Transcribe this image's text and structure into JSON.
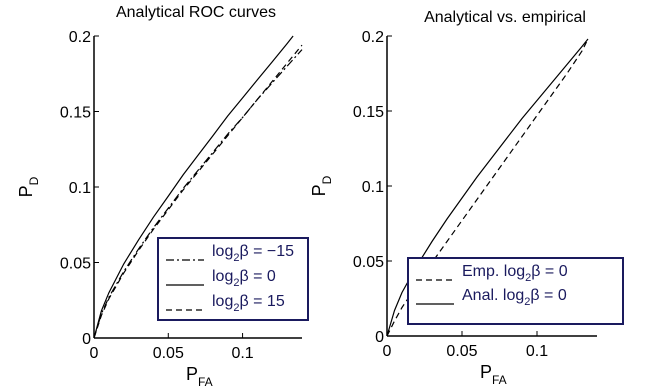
{
  "chart_data": [
    {
      "type": "line",
      "title": "Analytical ROC curves",
      "xlabel": "P",
      "xlabel_sub": "FA",
      "ylabel": "P",
      "ylabel_sub": "D",
      "xlim": [
        0,
        0.14
      ],
      "ylim": [
        0,
        0.2
      ],
      "xticks": [
        0,
        0.05,
        0.1
      ],
      "xtick_labels": [
        "0",
        "0.05",
        "0.1"
      ],
      "yticks": [
        0,
        0.05,
        0.1,
        0.15,
        0.2
      ],
      "ytick_labels": [
        "0",
        "0.05",
        "0.1",
        "0.15",
        "0.2"
      ],
      "grid": false,
      "legend_position": "bottom-right",
      "series": [
        {
          "name": "log",
          "name_sub": "2",
          "name_rest": "β = −15",
          "line_style": "dash-dot",
          "x": [
            0,
            0.005,
            0.01,
            0.02,
            0.03,
            0.04,
            0.05,
            0.06,
            0.07,
            0.08,
            0.09,
            0.1,
            0.11,
            0.12,
            0.13,
            0.14
          ],
          "y": [
            0,
            0.016,
            0.027,
            0.044,
            0.059,
            0.073,
            0.086,
            0.099,
            0.111,
            0.123,
            0.135,
            0.146,
            0.158,
            0.169,
            0.18,
            0.191
          ]
        },
        {
          "name": "log",
          "name_sub": "2",
          "name_rest": "β = 0",
          "line_style": "solid",
          "x": [
            0,
            0.005,
            0.01,
            0.02,
            0.03,
            0.04,
            0.05,
            0.06,
            0.07,
            0.08,
            0.09,
            0.1,
            0.11,
            0.12,
            0.13,
            0.134
          ],
          "y": [
            0,
            0.018,
            0.03,
            0.049,
            0.065,
            0.08,
            0.094,
            0.108,
            0.121,
            0.134,
            0.147,
            0.159,
            0.171,
            0.183,
            0.195,
            0.2
          ]
        },
        {
          "name": "log",
          "name_sub": "2",
          "name_rest": "β = 15",
          "line_style": "dashed",
          "x": [
            0,
            0.005,
            0.01,
            0.02,
            0.03,
            0.04,
            0.05,
            0.06,
            0.07,
            0.08,
            0.09,
            0.1,
            0.11,
            0.12,
            0.13,
            0.14
          ],
          "y": [
            0,
            0.015,
            0.026,
            0.043,
            0.058,
            0.072,
            0.085,
            0.098,
            0.11,
            0.122,
            0.134,
            0.146,
            0.158,
            0.17,
            0.182,
            0.194
          ]
        }
      ]
    },
    {
      "type": "line",
      "title": "Analytical vs. empirical",
      "xlabel": "P",
      "xlabel_sub": "FA",
      "ylabel": "P",
      "ylabel_sub": "D",
      "xlim": [
        0,
        0.14
      ],
      "ylim": [
        0,
        0.2
      ],
      "xticks": [
        0,
        0.05,
        0.1
      ],
      "xtick_labels": [
        "0",
        "0.05",
        "0.1"
      ],
      "yticks": [
        0,
        0.05,
        0.1,
        0.15,
        0.2
      ],
      "ytick_labels": [
        "0",
        "0.05",
        "0.1",
        "0.15",
        "0.2"
      ],
      "grid": false,
      "legend_position": "bottom-right",
      "series": [
        {
          "name": "Emp. log",
          "name_sub": "2",
          "name_rest": "β = 0",
          "line_style": "dashed",
          "x": [
            0,
            0.005,
            0.01,
            0.02,
            0.03,
            0.04,
            0.05,
            0.06,
            0.07,
            0.08,
            0.09,
            0.1,
            0.11,
            0.12,
            0.13,
            0.133
          ],
          "y": [
            0,
            0.01,
            0.019,
            0.034,
            0.049,
            0.063,
            0.077,
            0.091,
            0.105,
            0.119,
            0.133,
            0.147,
            0.161,
            0.175,
            0.19,
            0.196
          ]
        },
        {
          "name": "Anal. log",
          "name_sub": "2",
          "name_rest": "β = 0",
          "line_style": "solid",
          "x": [
            0,
            0.005,
            0.01,
            0.02,
            0.03,
            0.04,
            0.05,
            0.06,
            0.07,
            0.08,
            0.09,
            0.1,
            0.11,
            0.12,
            0.13,
            0.134
          ],
          "y": [
            0,
            0.017,
            0.029,
            0.047,
            0.063,
            0.078,
            0.092,
            0.106,
            0.119,
            0.132,
            0.145,
            0.157,
            0.169,
            0.181,
            0.193,
            0.198
          ]
        }
      ]
    }
  ]
}
